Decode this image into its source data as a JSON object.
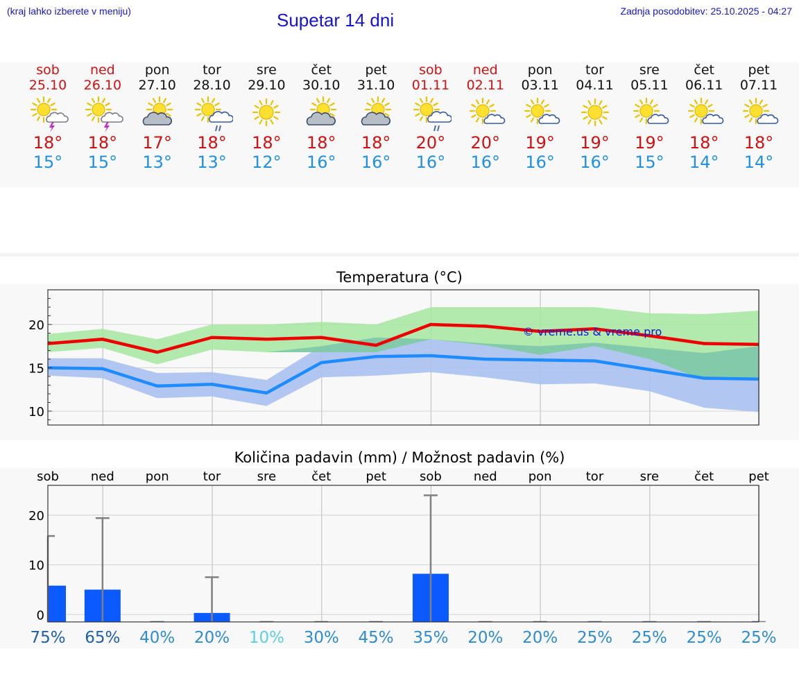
{
  "header": {
    "location_hint": "(kraj lahko izberete v meniju)",
    "title": "Supetar 14 dni",
    "last_update": "Zadnja posodobitev: 25.10.2025 - 04:27"
  },
  "forecast": {
    "days": [
      {
        "weekday": "sob",
        "date": "25.10",
        "high": "18°",
        "low": "15°",
        "weekend": true,
        "icon": "sun-cloud-thunder-icon"
      },
      {
        "weekday": "ned",
        "date": "26.10",
        "high": "18°",
        "low": "15°",
        "weekend": true,
        "icon": "sun-cloud-thunder-icon"
      },
      {
        "weekday": "pon",
        "date": "27.10",
        "high": "17°",
        "low": "13°",
        "weekend": false,
        "icon": "sun-gray-cloud-icon"
      },
      {
        "weekday": "tor",
        "date": "28.10",
        "high": "18°",
        "low": "13°",
        "weekend": false,
        "icon": "sun-cloud-rain-icon"
      },
      {
        "weekday": "sre",
        "date": "29.10",
        "high": "18°",
        "low": "12°",
        "weekend": false,
        "icon": "sun-icon"
      },
      {
        "weekday": "čet",
        "date": "30.10",
        "high": "18°",
        "low": "16°",
        "weekend": false,
        "icon": "sun-gray-cloud-icon"
      },
      {
        "weekday": "pet",
        "date": "31.10",
        "high": "18°",
        "low": "16°",
        "weekend": false,
        "icon": "sun-gray-cloud-icon"
      },
      {
        "weekday": "sob",
        "date": "01.11",
        "high": "20°",
        "low": "16°",
        "weekend": true,
        "icon": "sun-cloud-rain-icon"
      },
      {
        "weekday": "ned",
        "date": "02.11",
        "high": "20°",
        "low": "16°",
        "weekend": true,
        "icon": "sun-small-cloud-icon"
      },
      {
        "weekday": "pon",
        "date": "03.11",
        "high": "19°",
        "low": "16°",
        "weekend": false,
        "icon": "sun-small-cloud-icon"
      },
      {
        "weekday": "tor",
        "date": "04.11",
        "high": "19°",
        "low": "16°",
        "weekend": false,
        "icon": "sun-icon"
      },
      {
        "weekday": "sre",
        "date": "05.11",
        "high": "19°",
        "low": "15°",
        "weekend": false,
        "icon": "sun-small-cloud-icon"
      },
      {
        "weekday": "čet",
        "date": "06.11",
        "high": "18°",
        "low": "14°",
        "weekend": false,
        "icon": "sun-small-cloud-icon"
      },
      {
        "weekday": "pet",
        "date": "07.11",
        "high": "18°",
        "low": "14°",
        "weekend": false,
        "icon": "sun-small-cloud-icon"
      }
    ]
  },
  "colors": {
    "title_blue": "#1515d0",
    "weekend_red": "#d21010",
    "low_blue": "#2090e0",
    "tmax_line": "#ee0000",
    "tmin_line": "#1e8cff",
    "tmax_band": "#a6e6a0",
    "tmin_band": "#a8c0f0",
    "overlap_band": "#7ec8a8",
    "bar": "#0a5aff",
    "whisker": "#808080"
  },
  "chart_data": [
    {
      "type": "line",
      "title": "Temperatura (°C)",
      "watermark": "© vreme.us & vreme.pro",
      "x": [
        "25.10",
        "26.10",
        "27.10",
        "28.10",
        "29.10",
        "30.10",
        "31.10",
        "01.11",
        "02.11",
        "03.11",
        "04.11",
        "05.11",
        "06.11",
        "07.11"
      ],
      "ylim": [
        8.4,
        24
      ],
      "yticks": [
        10,
        15,
        20
      ],
      "series": [
        {
          "name": "max",
          "values": [
            17.8,
            18.3,
            16.8,
            18.5,
            18.3,
            18.5,
            17.6,
            20.0,
            19.8,
            19.2,
            19.5,
            18.7,
            17.8,
            17.7
          ],
          "band_low": [
            16.8,
            17.3,
            15.4,
            17.1,
            16.8,
            16.8,
            16.8,
            18.3,
            17.6,
            16.5,
            17.5,
            16.0,
            13.6,
            13.6
          ],
          "band_high": [
            18.9,
            19.5,
            18.3,
            20.0,
            20.0,
            20.3,
            20.0,
            22.0,
            22.0,
            22.0,
            22.0,
            21.3,
            21.2,
            21.6
          ]
        },
        {
          "name": "min",
          "values": [
            15.0,
            14.9,
            12.9,
            13.1,
            12.1,
            15.6,
            16.3,
            16.4,
            16.0,
            15.9,
            15.8,
            14.8,
            13.8,
            13.7
          ],
          "band_low": [
            14.1,
            13.8,
            11.5,
            11.7,
            10.6,
            13.9,
            14.1,
            14.5,
            13.9,
            13.1,
            13.2,
            12.3,
            10.4,
            9.9
          ],
          "band_high": [
            16.1,
            16.1,
            14.4,
            14.5,
            13.6,
            17.5,
            18.5,
            18.3,
            17.8,
            17.5,
            17.9,
            17.3,
            16.7,
            17.5
          ]
        }
      ],
      "grid": true
    },
    {
      "type": "bar",
      "title": "Količina padavin (mm) / Možnost padavin (%)",
      "categories": [
        "sob",
        "ned",
        "pon",
        "tor",
        "sre",
        "čet",
        "pet",
        "sob",
        "ned",
        "pon",
        "tor",
        "sre",
        "čet",
        "pet"
      ],
      "values": [
        5.8,
        5.0,
        0,
        0.3,
        0,
        0,
        0,
        8.2,
        0,
        0,
        0,
        0,
        0,
        0
      ],
      "whisker_max": [
        15.8,
        19.4,
        0,
        7.5,
        0,
        0,
        0,
        24.0,
        0,
        0,
        0,
        0,
        0,
        0
      ],
      "probability": [
        "75%",
        "65%",
        "40%",
        "20%",
        "10%",
        "30%",
        "45%",
        "35%",
        "20%",
        "20%",
        "25%",
        "25%",
        "25%",
        "25%"
      ],
      "probability_colors": [
        "#1f5fa8",
        "#1f5fa8",
        "#2e8ccc",
        "#2e8ccc",
        "#5ccfe0",
        "#2e8ccc",
        "#2e8ccc",
        "#2e8ccc",
        "#2e8ccc",
        "#2e8ccc",
        "#2e8ccc",
        "#2e8ccc",
        "#2e8ccc",
        "#2e8ccc"
      ],
      "ylim": [
        -1.5,
        26
      ],
      "yticks": [
        0,
        10,
        20
      ],
      "grid": true
    }
  ]
}
